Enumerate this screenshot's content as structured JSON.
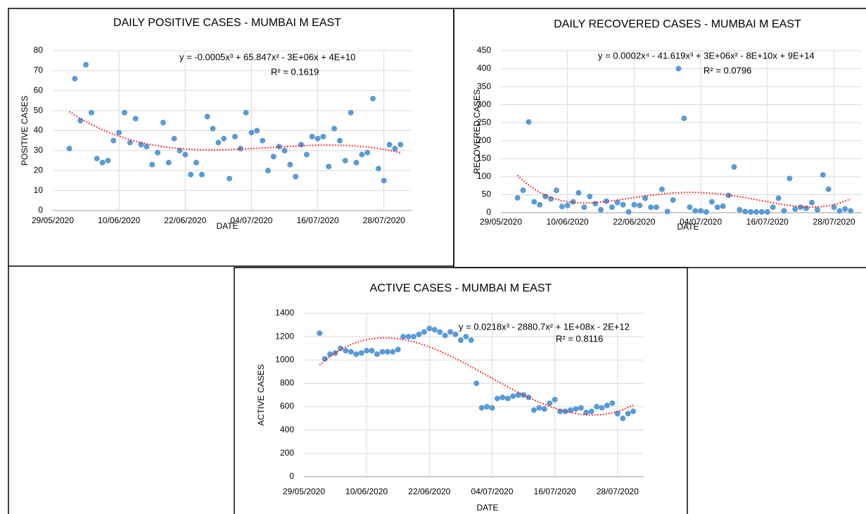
{
  "chart_data": [
    {
      "type": "scatter",
      "title": "DAILY POSITIVE CASES - MUMBAI M EAST",
      "x_label": "DATE",
      "y_label": "POSITIVE CASES",
      "x": [
        "01/06/2020",
        "02/06/2020",
        "03/06/2020",
        "04/06/2020",
        "05/06/2020",
        "06/06/2020",
        "07/06/2020",
        "08/06/2020",
        "09/06/2020",
        "10/06/2020",
        "11/06/2020",
        "12/06/2020",
        "13/06/2020",
        "14/06/2020",
        "15/06/2020",
        "16/06/2020",
        "17/06/2020",
        "18/06/2020",
        "19/06/2020",
        "20/06/2020",
        "21/06/2020",
        "22/06/2020",
        "23/06/2020",
        "24/06/2020",
        "25/06/2020",
        "26/06/2020",
        "27/06/2020",
        "28/06/2020",
        "29/06/2020",
        "30/06/2020",
        "01/07/2020",
        "02/07/2020",
        "03/07/2020",
        "04/07/2020",
        "05/07/2020",
        "06/07/2020",
        "07/07/2020",
        "08/07/2020",
        "09/07/2020",
        "10/07/2020",
        "11/07/2020",
        "12/07/2020",
        "13/07/2020",
        "14/07/2020",
        "15/07/2020",
        "16/07/2020",
        "17/07/2020",
        "18/07/2020",
        "19/07/2020",
        "20/07/2020",
        "21/07/2020",
        "22/07/2020",
        "23/07/2020",
        "24/07/2020",
        "25/07/2020",
        "26/07/2020",
        "27/07/2020",
        "28/07/2020",
        "29/07/2020",
        "30/07/2020",
        "31/07/2020"
      ],
      "values": [
        31,
        66,
        45,
        73,
        49,
        26,
        24,
        25,
        35,
        39,
        49,
        34,
        46,
        33,
        32,
        23,
        29,
        44,
        24,
        36,
        30,
        28,
        18,
        24,
        18,
        47,
        41,
        34,
        36,
        16,
        37,
        31,
        49,
        39,
        40,
        35,
        20,
        27,
        32,
        30,
        23,
        17,
        33,
        28,
        37,
        36,
        37,
        22,
        41,
        35,
        25,
        49,
        24,
        28,
        29,
        56,
        21,
        15,
        33,
        31,
        33
      ],
      "color": "#5b9bd5",
      "xlim": [
        "29/05/2020",
        "02/08/2020"
      ],
      "xticks": [
        "29/05/2020",
        "10/06/2020",
        "22/06/2020",
        "04/07/2020",
        "16/07/2020",
        "28/07/2020"
      ],
      "ylim": [
        0,
        80
      ],
      "yticks": [
        0,
        10,
        20,
        30,
        40,
        50,
        60,
        70,
        80
      ],
      "grid": true,
      "trendline": {
        "type": "polynomial",
        "order": 3,
        "color": "#ff0000",
        "equation": "y = -0.0005x³ + 65.847x² - 3E+06x + 4E+10",
        "r_squared": "R² = 0.1619"
      }
    },
    {
      "type": "scatter",
      "title": "DAILY RECOVERED CASES - MUMBAI M EAST",
      "x_label": "DATE",
      "y_label": "RECOVERED CASES",
      "x": [
        "01/06/2020",
        "02/06/2020",
        "03/06/2020",
        "04/06/2020",
        "05/06/2020",
        "06/06/2020",
        "07/06/2020",
        "08/06/2020",
        "09/06/2020",
        "10/06/2020",
        "11/06/2020",
        "12/06/2020",
        "13/06/2020",
        "14/06/2020",
        "15/06/2020",
        "16/06/2020",
        "17/06/2020",
        "18/06/2020",
        "19/06/2020",
        "20/06/2020",
        "21/06/2020",
        "22/06/2020",
        "23/06/2020",
        "24/06/2020",
        "25/06/2020",
        "26/06/2020",
        "27/06/2020",
        "28/06/2020",
        "29/06/2020",
        "30/06/2020",
        "01/07/2020",
        "02/07/2020",
        "03/07/2020",
        "04/07/2020",
        "05/07/2020",
        "06/07/2020",
        "07/07/2020",
        "08/07/2020",
        "09/07/2020",
        "10/07/2020",
        "11/07/2020",
        "12/07/2020",
        "13/07/2020",
        "14/07/2020",
        "15/07/2020",
        "16/07/2020",
        "17/07/2020",
        "18/07/2020",
        "19/07/2020",
        "20/07/2020",
        "21/07/2020",
        "22/07/2020",
        "23/07/2020",
        "24/07/2020",
        "25/07/2020",
        "26/07/2020",
        "27/07/2020",
        "28/07/2020",
        "29/07/2020",
        "30/07/2020",
        "31/07/2020"
      ],
      "values": [
        41,
        62,
        252,
        30,
        22,
        45,
        38,
        62,
        17,
        20,
        30,
        55,
        15,
        45,
        25,
        8,
        32,
        15,
        28,
        22,
        2,
        22,
        20,
        40,
        15,
        15,
        65,
        3,
        35,
        400,
        262,
        15,
        5,
        5,
        2,
        30,
        15,
        18,
        48,
        127,
        8,
        3,
        2,
        2,
        2,
        2,
        15,
        40,
        5,
        95,
        10,
        15,
        12,
        28,
        8,
        105,
        65,
        15,
        5,
        10,
        5
      ],
      "color": "#5b9bd5",
      "xlim": [
        "29/05/2020",
        "02/08/2020"
      ],
      "xticks": [
        "29/05/2020",
        "10/06/2020",
        "22/06/2020",
        "04/07/2020",
        "16/07/2020",
        "28/07/2020"
      ],
      "ylim": [
        0,
        450
      ],
      "yticks": [
        0,
        50,
        100,
        150,
        200,
        250,
        300,
        350,
        400,
        450
      ],
      "grid": true,
      "trendline": {
        "type": "polynomial",
        "order": 4,
        "color": "#ff0000",
        "equation": "y = 0.0002x⁴ - 41.619x³ + 3E+06x² - 8E+10x + 9E+14",
        "r_squared": "R² = 0.0796"
      }
    },
    {
      "type": "scatter",
      "title": "ACTIVE CASES - MUMBAI M EAST",
      "x_label": "DATE",
      "y_label": "ACTIVE CASES",
      "x": [
        "01/06/2020",
        "02/06/2020",
        "03/06/2020",
        "04/06/2020",
        "05/06/2020",
        "06/06/2020",
        "07/06/2020",
        "08/06/2020",
        "09/06/2020",
        "10/06/2020",
        "11/06/2020",
        "12/06/2020",
        "13/06/2020",
        "14/06/2020",
        "15/06/2020",
        "16/06/2020",
        "17/06/2020",
        "18/06/2020",
        "19/06/2020",
        "20/06/2020",
        "21/06/2020",
        "22/06/2020",
        "23/06/2020",
        "24/06/2020",
        "25/06/2020",
        "26/06/2020",
        "27/06/2020",
        "28/06/2020",
        "29/06/2020",
        "30/06/2020",
        "01/07/2020",
        "02/07/2020",
        "03/07/2020",
        "04/07/2020",
        "05/07/2020",
        "06/07/2020",
        "07/07/2020",
        "08/07/2020",
        "09/07/2020",
        "10/07/2020",
        "11/07/2020",
        "12/07/2020",
        "13/07/2020",
        "14/07/2020",
        "15/07/2020",
        "16/07/2020",
        "17/07/2020",
        "18/07/2020",
        "19/07/2020",
        "20/07/2020",
        "21/07/2020",
        "22/07/2020",
        "23/07/2020",
        "24/07/2020",
        "25/07/2020",
        "26/07/2020",
        "27/07/2020",
        "28/07/2020",
        "29/07/2020",
        "30/07/2020",
        "31/07/2020"
      ],
      "values": [
        1230,
        1010,
        1050,
        1060,
        1100,
        1080,
        1070,
        1050,
        1060,
        1080,
        1080,
        1050,
        1070,
        1070,
        1070,
        1090,
        1200,
        1200,
        1200,
        1220,
        1240,
        1270,
        1260,
        1240,
        1210,
        1240,
        1220,
        1170,
        1200,
        1170,
        800,
        590,
        600,
        590,
        670,
        680,
        670,
        690,
        700,
        700,
        680,
        570,
        590,
        580,
        630,
        660,
        560,
        560,
        570,
        580,
        590,
        550,
        560,
        600,
        590,
        610,
        630,
        540,
        500,
        540,
        560
      ],
      "color": "#5b9bd5",
      "xlim": [
        "29/05/2020",
        "02/08/2020"
      ],
      "xticks": [
        "29/05/2020",
        "10/06/2020",
        "22/06/2020",
        "04/07/2020",
        "16/07/2020",
        "28/07/2020"
      ],
      "ylim": [
        0,
        1400
      ],
      "yticks": [
        0,
        200,
        400,
        600,
        800,
        1000,
        1200,
        1400
      ],
      "grid": true,
      "trendline": {
        "type": "polynomial",
        "order": 3,
        "color": "#ff0000",
        "equation": "y = 0.0218x³ - 2880.7x² + 1E+08x - 2E+12",
        "r_squared": "R² = 0.8116"
      }
    }
  ]
}
